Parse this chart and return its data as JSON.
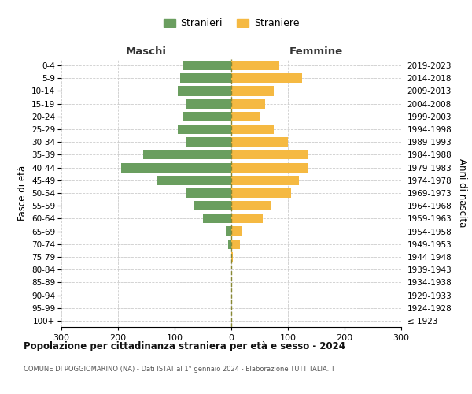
{
  "age_groups": [
    "100+",
    "95-99",
    "90-94",
    "85-89",
    "80-84",
    "75-79",
    "70-74",
    "65-69",
    "60-64",
    "55-59",
    "50-54",
    "45-49",
    "40-44",
    "35-39",
    "30-34",
    "25-29",
    "20-24",
    "15-19",
    "10-14",
    "5-9",
    "0-4"
  ],
  "birth_years": [
    "≤ 1923",
    "1924-1928",
    "1929-1933",
    "1934-1938",
    "1939-1943",
    "1944-1948",
    "1949-1953",
    "1954-1958",
    "1959-1963",
    "1964-1968",
    "1969-1973",
    "1974-1978",
    "1979-1983",
    "1984-1988",
    "1989-1993",
    "1994-1998",
    "1999-2003",
    "2004-2008",
    "2009-2013",
    "2014-2018",
    "2019-2023"
  ],
  "males": [
    0,
    0,
    0,
    0,
    0,
    0,
    5,
    10,
    50,
    65,
    80,
    130,
    195,
    155,
    80,
    95,
    85,
    80,
    95,
    90,
    85
  ],
  "females": [
    0,
    0,
    0,
    0,
    0,
    3,
    15,
    20,
    55,
    70,
    105,
    120,
    135,
    135,
    100,
    75,
    50,
    60,
    75,
    125,
    85
  ],
  "male_color": "#6a9e5f",
  "female_color": "#f5b942",
  "background_color": "#ffffff",
  "grid_color": "#cccccc",
  "title": "Popolazione per cittadinanza straniera per età e sesso - 2024",
  "subtitle": "COMUNE DI POGGIOMARINO (NA) - Dati ISTAT al 1° gennaio 2024 - Elaborazione TUTTITALIA.IT",
  "left_header": "Maschi",
  "right_header": "Femmine",
  "ylabel_left": "Fasce di età",
  "ylabel_right": "Anni di nascita",
  "legend_male": "Stranieri",
  "legend_female": "Straniere",
  "xlim": 300,
  "bar_height": 0.75,
  "grid_color_line": "#cccccc"
}
